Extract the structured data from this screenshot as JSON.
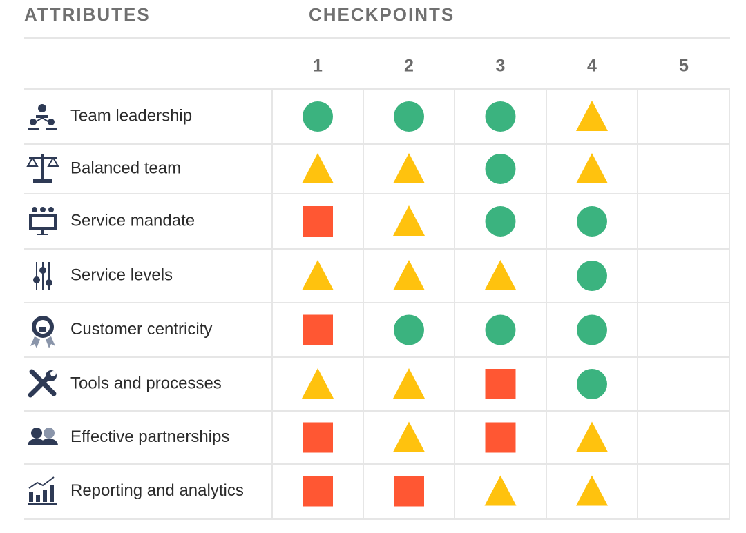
{
  "header": {
    "attributes": "ATTRIBUTES",
    "checkpoints": "CHECKPOINTS"
  },
  "columns": [
    1,
    2,
    3,
    4,
    5
  ],
  "colors": {
    "circle": "#3bb37f",
    "triangle": "#ffc20e",
    "square": "#ff5733"
  },
  "rows": [
    {
      "label": "Team leadership",
      "cells": [
        "circle",
        "circle",
        "circle",
        "triangle",
        null
      ]
    },
    {
      "label": "Balanced team",
      "cells": [
        "triangle",
        "triangle",
        "circle",
        "triangle",
        null
      ]
    },
    {
      "label": "Service mandate",
      "cells": [
        "square",
        "triangle",
        "circle",
        "circle",
        null
      ]
    },
    {
      "label": "Service levels",
      "cells": [
        "triangle",
        "triangle",
        "triangle",
        "circle",
        null
      ]
    },
    {
      "label": "Customer centricity",
      "cells": [
        "square",
        "circle",
        "circle",
        "circle",
        null
      ]
    },
    {
      "label": "Tools and processes",
      "cells": [
        "triangle",
        "triangle",
        "square",
        "circle",
        null
      ]
    },
    {
      "label": "Effective partnerships",
      "cells": [
        "square",
        "triangle",
        "square",
        "triangle",
        null
      ]
    },
    {
      "label": "Reporting and analytics",
      "cells": [
        "square",
        "square",
        "triangle",
        "triangle",
        null
      ]
    }
  ]
}
